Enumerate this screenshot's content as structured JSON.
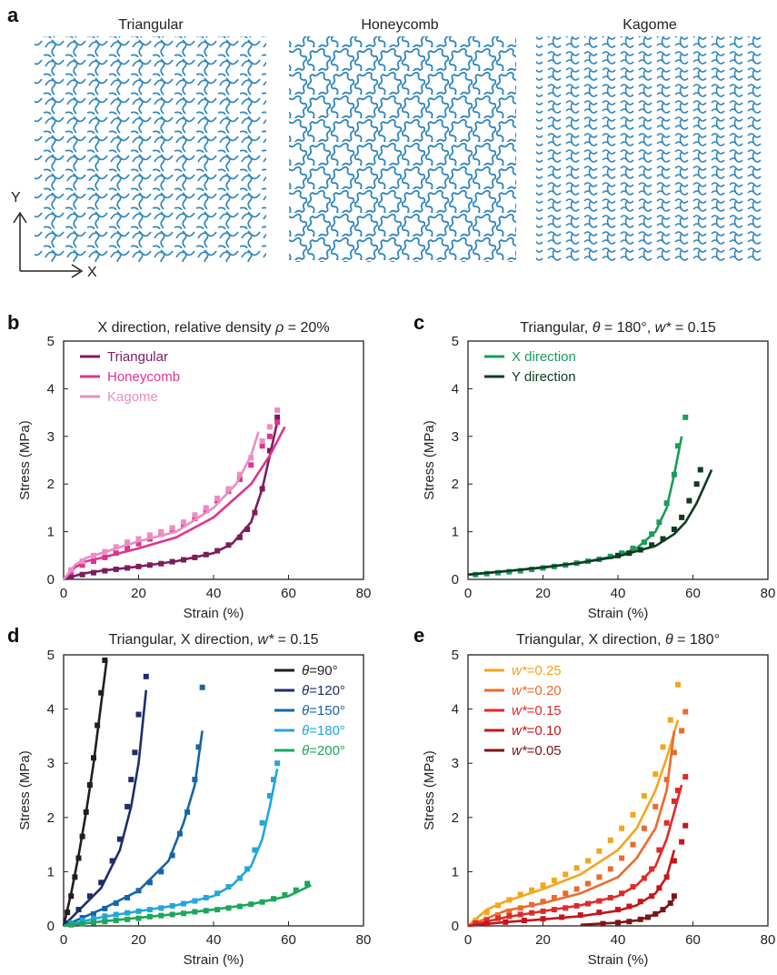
{
  "panel_a": {
    "letter": "a",
    "lattices": [
      {
        "name": "Triangular",
        "color": "#2f86bf"
      },
      {
        "name": "Honeycomb",
        "color": "#2f86bf"
      },
      {
        "name": "Kagome",
        "color": "#2f86bf"
      }
    ],
    "axis_x": "X",
    "axis_y": "Y"
  },
  "chart_data": [
    {
      "panel": "b",
      "type": "line",
      "title_parts": [
        "X direction, relative density ",
        "ρ",
        " = 20%"
      ],
      "xlabel": "Strain (%)",
      "ylabel": "Stress (MPa)",
      "xlim": [
        0,
        80
      ],
      "ylim": [
        0,
        5
      ],
      "xticks": [
        0,
        20,
        40,
        60,
        80
      ],
      "yticks": [
        0,
        1,
        2,
        3,
        4,
        5
      ],
      "legend_position": "top-left",
      "series": [
        {
          "name": "Triangular",
          "color": "#7b1d5f",
          "x": [
            0,
            5,
            10,
            20,
            30,
            40,
            45,
            50,
            53,
            55,
            57
          ],
          "y": [
            0,
            0.12,
            0.18,
            0.27,
            0.38,
            0.55,
            0.75,
            1.2,
            1.9,
            2.6,
            3.3
          ],
          "points_x": [
            2,
            5,
            8,
            11,
            14,
            17,
            20,
            23,
            26,
            29,
            32,
            35,
            38,
            41,
            44,
            47,
            49,
            51,
            53,
            55,
            57
          ],
          "points_y": [
            0.05,
            0.1,
            0.14,
            0.18,
            0.21,
            0.24,
            0.27,
            0.3,
            0.33,
            0.37,
            0.41,
            0.46,
            0.52,
            0.6,
            0.72,
            0.88,
            1.05,
            1.4,
            1.9,
            2.7,
            3.4
          ]
        },
        {
          "name": "Honeycomb",
          "color": "#e0338f",
          "x": [
            0,
            3,
            6,
            10,
            20,
            30,
            40,
            50,
            55,
            59
          ],
          "y": [
            0,
            0.25,
            0.38,
            0.45,
            0.65,
            0.88,
            1.3,
            2.0,
            2.6,
            3.2
          ],
          "points_x": [
            2,
            5,
            8,
            11,
            14,
            17,
            20,
            23,
            26,
            29,
            32,
            35,
            38,
            41,
            44,
            47,
            50,
            53,
            55,
            57
          ],
          "points_y": [
            0.15,
            0.3,
            0.38,
            0.46,
            0.55,
            0.65,
            0.75,
            0.85,
            0.95,
            1.05,
            1.15,
            1.28,
            1.45,
            1.65,
            1.85,
            2.1,
            2.4,
            2.8,
            3.0,
            3.3
          ]
        },
        {
          "name": "Kagome",
          "color": "#ea8ec4",
          "x": [
            0,
            3,
            6,
            10,
            20,
            30,
            40,
            46,
            50,
            52
          ],
          "y": [
            0,
            0.3,
            0.45,
            0.55,
            0.8,
            1.0,
            1.5,
            2.0,
            2.6,
            3.1
          ],
          "points_x": [
            2,
            5,
            8,
            11,
            14,
            17,
            20,
            23,
            26,
            29,
            32,
            35,
            38,
            41,
            44,
            47,
            50,
            53,
            55,
            57
          ],
          "points_y": [
            0.2,
            0.38,
            0.5,
            0.58,
            0.68,
            0.78,
            0.85,
            0.93,
            1.0,
            1.08,
            1.2,
            1.35,
            1.5,
            1.7,
            1.9,
            2.2,
            2.55,
            2.9,
            3.2,
            3.55
          ]
        }
      ]
    },
    {
      "panel": "c",
      "type": "line",
      "title_parts": [
        "Triangular,  ",
        "θ",
        " = 180°, ",
        "w*",
        " = 0.15"
      ],
      "xlabel": "Strain (%)",
      "ylabel": "Stress (MPa)",
      "xlim": [
        0,
        80
      ],
      "ylim": [
        0,
        5
      ],
      "xticks": [
        0,
        20,
        40,
        60,
        80
      ],
      "yticks": [
        0,
        1,
        2,
        3,
        4,
        5
      ],
      "legend_position": "top-left",
      "series": [
        {
          "name": "X direction",
          "color": "#1a9c5a",
          "x": [
            0,
            10,
            20,
            30,
            40,
            45,
            50,
            53,
            55,
            57
          ],
          "y": [
            0.1,
            0.17,
            0.25,
            0.35,
            0.5,
            0.65,
            1.0,
            1.5,
            2.2,
            3.0
          ],
          "points_x": [
            2,
            5,
            8,
            11,
            14,
            17,
            20,
            23,
            26,
            29,
            32,
            35,
            38,
            41,
            44,
            47,
            49,
            51,
            53,
            55,
            56,
            58
          ],
          "points_y": [
            0.1,
            0.12,
            0.14,
            0.16,
            0.18,
            0.21,
            0.24,
            0.27,
            0.3,
            0.34,
            0.38,
            0.42,
            0.48,
            0.55,
            0.65,
            0.78,
            0.95,
            1.2,
            1.6,
            2.2,
            2.8,
            3.4
          ]
        },
        {
          "name": "Y direction",
          "color": "#0e3b23",
          "x": [
            0,
            10,
            20,
            30,
            40,
            50,
            55,
            58,
            61,
            63,
            65
          ],
          "y": [
            0.1,
            0.17,
            0.25,
            0.35,
            0.48,
            0.7,
            0.95,
            1.2,
            1.6,
            1.95,
            2.3
          ],
          "points_x": [
            40,
            43,
            46,
            49,
            52,
            55,
            57,
            59,
            61,
            62
          ],
          "points_y": [
            0.5,
            0.55,
            0.62,
            0.72,
            0.85,
            1.05,
            1.3,
            1.65,
            2.0,
            2.3
          ]
        }
      ]
    },
    {
      "panel": "d",
      "type": "line",
      "title_parts": [
        "Triangular, X direction, ",
        "w*",
        " = 0.15"
      ],
      "xlabel": "Strain (%)",
      "ylabel": "Stress (MPa)",
      "xlim": [
        0,
        80
      ],
      "ylim": [
        0,
        5
      ],
      "xticks": [
        0,
        20,
        40,
        60,
        80
      ],
      "yticks": [
        0,
        1,
        2,
        3,
        4,
        5
      ],
      "legend_position": "top-right",
      "series": [
        {
          "name": "θ=90°",
          "label_var": "θ",
          "label_val": "=90°",
          "color": "#1f1f1f",
          "x": [
            0,
            2,
            4,
            6,
            8,
            10,
            11.5
          ],
          "y": [
            0,
            0.6,
            1.3,
            2.1,
            3.0,
            4.1,
            4.9
          ],
          "points_x": [
            1,
            2,
            3,
            4,
            5,
            6,
            7,
            8,
            9,
            10,
            11
          ],
          "points_y": [
            0.25,
            0.55,
            0.9,
            1.25,
            1.65,
            2.1,
            2.6,
            3.1,
            3.7,
            4.3,
            4.9
          ]
        },
        {
          "name": "θ=120°",
          "label_var": "θ",
          "label_val": "=120°",
          "color": "#1e2d6b",
          "x": [
            0,
            5,
            10,
            15,
            18,
            20,
            22
          ],
          "y": [
            0,
            0.35,
            0.7,
            1.4,
            2.2,
            3.0,
            4.35
          ],
          "points_x": [
            1,
            4,
            7,
            10,
            13,
            15,
            17,
            18,
            19,
            20,
            22
          ],
          "points_y": [
            0.05,
            0.3,
            0.55,
            0.8,
            1.2,
            1.6,
            2.2,
            2.7,
            3.2,
            3.9,
            4.6
          ]
        },
        {
          "name": "θ=150°",
          "label_var": "θ",
          "label_val": "=150°",
          "color": "#1565a8",
          "x": [
            0,
            10,
            20,
            28,
            32,
            35,
            37
          ],
          "y": [
            0,
            0.3,
            0.65,
            1.2,
            1.9,
            2.6,
            3.6
          ],
          "points_x": [
            2,
            5,
            8,
            11,
            14,
            17,
            20,
            23,
            26,
            29,
            31,
            33,
            35,
            36,
            37
          ],
          "points_y": [
            0.05,
            0.15,
            0.22,
            0.32,
            0.42,
            0.52,
            0.65,
            0.8,
            1.0,
            1.3,
            1.7,
            2.1,
            2.7,
            3.3,
            4.4
          ]
        },
        {
          "name": "θ=180°",
          "label_var": "θ",
          "label_val": "=180°",
          "color": "#21a7dc",
          "x": [
            0,
            10,
            20,
            30,
            40,
            45,
            50,
            53,
            55,
            57
          ],
          "y": [
            0,
            0.16,
            0.27,
            0.38,
            0.55,
            0.75,
            1.1,
            1.6,
            2.2,
            2.9
          ],
          "points_x": [
            2,
            5,
            8,
            11,
            14,
            17,
            20,
            23,
            26,
            29,
            32,
            35,
            38,
            41,
            44,
            47,
            49,
            51,
            53,
            55,
            56,
            57
          ],
          "points_y": [
            0.05,
            0.1,
            0.14,
            0.18,
            0.21,
            0.24,
            0.27,
            0.3,
            0.33,
            0.37,
            0.41,
            0.46,
            0.52,
            0.6,
            0.72,
            0.88,
            1.05,
            1.4,
            1.9,
            2.4,
            2.7,
            3.0
          ]
        },
        {
          "name": "θ=200°",
          "label_var": "θ",
          "label_val": "=200°",
          "color": "#1aa85a",
          "x": [
            0,
            10,
            20,
            30,
            40,
            50,
            60,
            66
          ],
          "y": [
            0,
            0.08,
            0.15,
            0.22,
            0.3,
            0.4,
            0.55,
            0.75
          ],
          "points_x": [
            2,
            5,
            8,
            11,
            14,
            17,
            20,
            23,
            26,
            29,
            32,
            35,
            38,
            41,
            44,
            47,
            50,
            53,
            56,
            59,
            62,
            65
          ],
          "points_y": [
            0.02,
            0.04,
            0.06,
            0.08,
            0.1,
            0.12,
            0.14,
            0.17,
            0.19,
            0.21,
            0.23,
            0.26,
            0.28,
            0.3,
            0.33,
            0.36,
            0.4,
            0.44,
            0.5,
            0.57,
            0.66,
            0.78
          ]
        }
      ]
    },
    {
      "panel": "e",
      "type": "line",
      "title_parts": [
        "Triangular, X direction, ",
        "θ",
        " = 180°"
      ],
      "xlabel": "Strain (%)",
      "ylabel": "Stress (MPa)",
      "xlim": [
        0,
        80
      ],
      "ylim": [
        0,
        5
      ],
      "xticks": [
        0,
        20,
        40,
        60,
        80
      ],
      "yticks": [
        0,
        1,
        2,
        3,
        4,
        5
      ],
      "legend_position": "top-left",
      "series": [
        {
          "name": "w*=0.25",
          "label_var": "w*",
          "label_val": "=0.25",
          "color": "#f5a51b",
          "x": [
            0,
            5,
            10,
            20,
            30,
            40,
            45,
            50,
            53,
            56
          ],
          "y": [
            0,
            0.3,
            0.45,
            0.68,
            0.95,
            1.4,
            1.8,
            2.5,
            3.1,
            3.8
          ],
          "points_x": [
            2,
            5,
            8,
            11,
            14,
            17,
            20,
            23,
            26,
            29,
            32,
            35,
            38,
            41,
            44,
            47,
            50,
            52,
            54,
            56
          ],
          "points_y": [
            0.1,
            0.25,
            0.38,
            0.48,
            0.58,
            0.66,
            0.75,
            0.84,
            0.95,
            1.07,
            1.2,
            1.38,
            1.58,
            1.8,
            2.05,
            2.4,
            2.8,
            3.3,
            3.8,
            4.45
          ]
        },
        {
          "name": "w*=0.20",
          "label_var": "w*",
          "label_val": "=0.20",
          "color": "#ec6a2c",
          "x": [
            0,
            10,
            20,
            30,
            40,
            45,
            50,
            53,
            55
          ],
          "y": [
            0,
            0.28,
            0.42,
            0.6,
            0.9,
            1.25,
            1.8,
            2.5,
            3.6
          ],
          "points_x": [
            2,
            5,
            8,
            11,
            14,
            17,
            20,
            23,
            26,
            29,
            32,
            35,
            38,
            41,
            44,
            47,
            50,
            53,
            55,
            57,
            58
          ],
          "points_y": [
            0.05,
            0.12,
            0.2,
            0.27,
            0.33,
            0.39,
            0.45,
            0.52,
            0.6,
            0.68,
            0.78,
            0.9,
            1.05,
            1.25,
            1.5,
            1.8,
            2.2,
            2.7,
            3.2,
            3.6,
            3.95
          ]
        },
        {
          "name": "w*=0.15",
          "label_var": "w*",
          "label_val": "=0.15",
          "color": "#e02a2a",
          "x": [
            0,
            10,
            20,
            30,
            40,
            45,
            50,
            53,
            55,
            57
          ],
          "y": [
            0,
            0.16,
            0.27,
            0.38,
            0.55,
            0.75,
            1.1,
            1.6,
            2.1,
            2.6
          ],
          "points_x": [
            2,
            5,
            8,
            11,
            14,
            17,
            20,
            23,
            26,
            29,
            32,
            35,
            38,
            41,
            44,
            47,
            49,
            51,
            53,
            55,
            56,
            58
          ],
          "points_y": [
            0.05,
            0.1,
            0.14,
            0.18,
            0.21,
            0.24,
            0.27,
            0.3,
            0.33,
            0.37,
            0.41,
            0.46,
            0.52,
            0.6,
            0.72,
            0.88,
            1.05,
            1.4,
            1.9,
            2.3,
            2.5,
            2.75
          ]
        },
        {
          "name": "w*=0.10",
          "label_var": "w*",
          "label_val": "=0.10",
          "color": "#c4161c",
          "x": [
            0,
            10,
            20,
            30,
            40,
            45,
            50,
            53,
            55
          ],
          "y": [
            0,
            0.07,
            0.12,
            0.18,
            0.28,
            0.38,
            0.6,
            0.9,
            1.4
          ],
          "points_x": [
            5,
            10,
            15,
            20,
            25,
            30,
            35,
            40,
            43,
            46,
            49,
            51,
            53,
            55,
            57,
            58
          ],
          "points_y": [
            0.04,
            0.07,
            0.1,
            0.13,
            0.16,
            0.2,
            0.25,
            0.3,
            0.36,
            0.45,
            0.55,
            0.7,
            0.9,
            1.2,
            1.55,
            1.85
          ]
        },
        {
          "name": "w*=0.05",
          "label_var": "w*",
          "label_val": "=0.05",
          "color": "#7d1417",
          "x": [
            30,
            40,
            45,
            48,
            51,
            53,
            55
          ],
          "y": [
            0.02,
            0.06,
            0.1,
            0.16,
            0.25,
            0.35,
            0.5
          ],
          "points_x": [
            36,
            40,
            43,
            46,
            48,
            50,
            52,
            54,
            55
          ],
          "points_y": [
            0.04,
            0.06,
            0.08,
            0.12,
            0.16,
            0.22,
            0.3,
            0.42,
            0.55
          ]
        }
      ]
    }
  ]
}
